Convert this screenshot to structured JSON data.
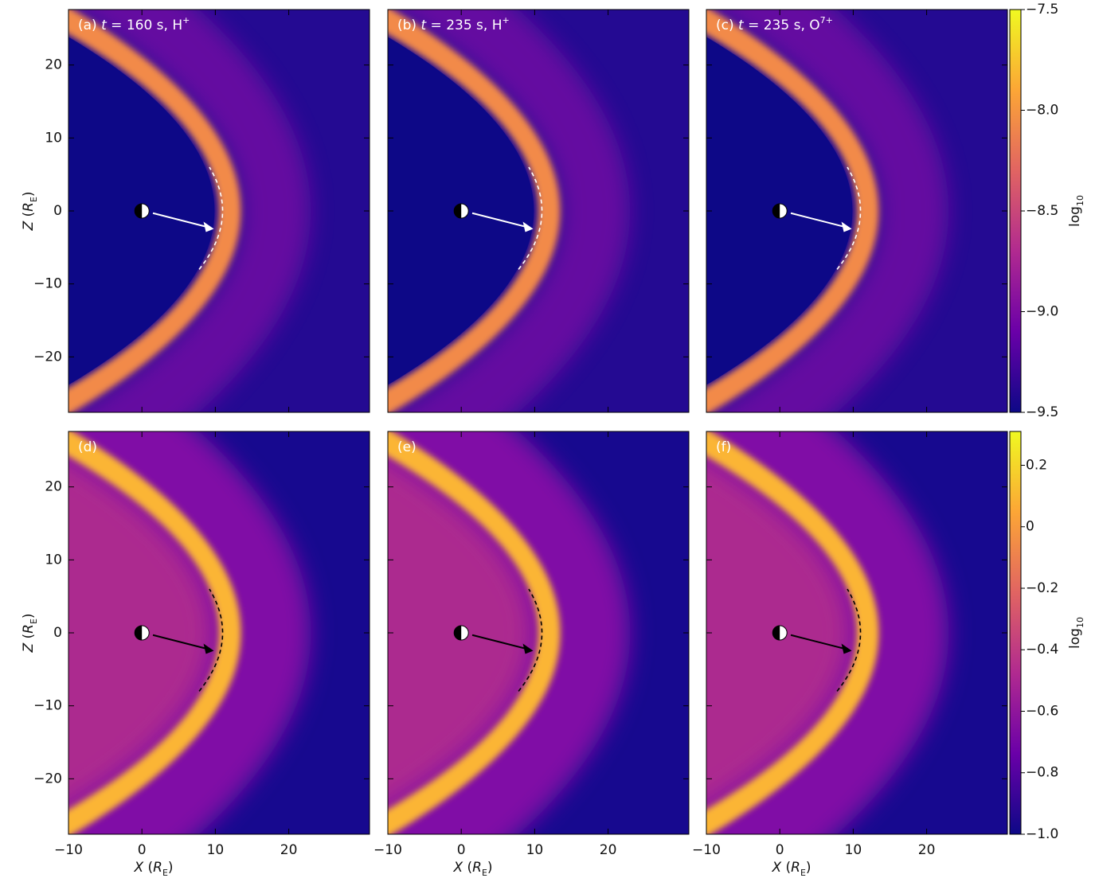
{
  "chart_data": [
    {
      "type": "heatmap",
      "title": [
        "(a) ",
        "t",
        " = 160 s, H",
        "+"
      ],
      "xlim": [
        -10,
        31
      ],
      "ylim": [
        -27.6,
        27.6
      ],
      "xticks": [
        {
          "value": -10,
          "label": "−10"
        },
        0,
        10,
        20
      ],
      "yticks": [
        {
          "value": -20,
          "label": "−20"
        },
        {
          "value": -10,
          "label": "−10"
        },
        0,
        10,
        20
      ],
      "show_xticklabels": false,
      "show_yticklabels": true,
      "ylabel": [
        "Z",
        " (",
        "R",
        "E",
        ")"
      ]
    },
    {
      "type": "heatmap",
      "title": [
        "(b) ",
        "t",
        " = 235 s, H",
        "+"
      ],
      "xlim": [
        -10,
        31
      ],
      "ylim": [
        -27.6,
        27.6
      ],
      "xticks": [
        {
          "value": -10,
          "label": "−10"
        },
        0,
        10,
        20
      ],
      "yticks": [
        {
          "value": -20,
          "label": "−20"
        },
        {
          "value": -10,
          "label": "−10"
        },
        0,
        10,
        20
      ],
      "show_xticklabels": false,
      "show_yticklabels": false
    },
    {
      "type": "heatmap",
      "title": [
        "(c) ",
        "t",
        " = 235 s, O",
        "7+"
      ],
      "xlim": [
        -10,
        31
      ],
      "ylim": [
        -27.6,
        27.6
      ],
      "xticks": [
        {
          "value": -10,
          "label": "−10"
        },
        0,
        10,
        20
      ],
      "yticks": [
        {
          "value": -20,
          "label": "−20"
        },
        {
          "value": -10,
          "label": "−10"
        },
        0,
        10,
        20
      ],
      "show_xticklabels": false,
      "show_yticklabels": false,
      "colorbar": {
        "lim": [
          -9.5,
          -7.5
        ],
        "ticks": [
          {
            "value": -9.5,
            "label": "−9.5"
          },
          {
            "value": -9.0,
            "label": "−9.0"
          },
          {
            "value": -8.5,
            "label": "−8.5"
          },
          {
            "value": -8.0,
            "label": "−8.0"
          },
          {
            "value": -7.5,
            "label": "−7.5"
          }
        ],
        "label": [
          "log",
          "10"
        ],
        "colormap": [
          "#0d0887",
          "#6a00a8",
          "#b12a90",
          "#e16462",
          "#fca636",
          "#f0f921"
        ]
      }
    },
    {
      "type": "heatmap",
      "title": [
        "(d)"
      ],
      "xlim": [
        -10,
        31
      ],
      "ylim": [
        -27.6,
        27.6
      ],
      "xticks": [
        {
          "value": -10,
          "label": "−10"
        },
        0,
        10,
        20
      ],
      "yticks": [
        {
          "value": -20,
          "label": "−20"
        },
        {
          "value": -10,
          "label": "−10"
        },
        0,
        10,
        20
      ],
      "show_xticklabels": true,
      "show_yticklabels": true,
      "xlabel": [
        "X",
        " (",
        "R",
        "E",
        ")"
      ],
      "ylabel": [
        "Z",
        " (",
        "R",
        "E",
        ")"
      ]
    },
    {
      "type": "heatmap",
      "title": [
        "(e)"
      ],
      "xlim": [
        -10,
        31
      ],
      "ylim": [
        -27.6,
        27.6
      ],
      "xticks": [
        {
          "value": -10,
          "label": "−10"
        },
        0,
        10,
        20
      ],
      "yticks": [
        {
          "value": -20,
          "label": "−20"
        },
        {
          "value": -10,
          "label": "−10"
        },
        0,
        10,
        20
      ],
      "show_xticklabels": true,
      "show_yticklabels": false,
      "xlabel": [
        "X",
        " (",
        "R",
        "E",
        ")"
      ]
    },
    {
      "type": "heatmap",
      "title": [
        "(f)"
      ],
      "xlim": [
        -10,
        31
      ],
      "ylim": [
        -27.6,
        27.6
      ],
      "xticks": [
        {
          "value": -10,
          "label": "−10"
        },
        0,
        10,
        20
      ],
      "yticks": [
        {
          "value": -20,
          "label": "−20"
        },
        {
          "value": -10,
          "label": "−10"
        },
        0,
        10,
        20
      ],
      "show_xticklabels": true,
      "show_yticklabels": false,
      "xlabel": [
        "X",
        " (",
        "R",
        "E",
        ")"
      ],
      "colorbar": {
        "lim": [
          -1.0,
          0.31
        ],
        "ticks": [
          {
            "value": -1.0,
            "label": "−1.0"
          },
          {
            "value": -0.8,
            "label": "−0.8"
          },
          {
            "value": -0.6,
            "label": "−0.6"
          },
          {
            "value": -0.4,
            "label": "−0.4"
          },
          {
            "value": -0.2,
            "label": "−0.2"
          },
          0,
          0.2
        ],
        "label": [
          "log",
          "10"
        ],
        "colormap": [
          "#0d0887",
          "#6a00a8",
          "#b12a90",
          "#e16462",
          "#fca636",
          "#f0f921"
        ]
      }
    }
  ]
}
